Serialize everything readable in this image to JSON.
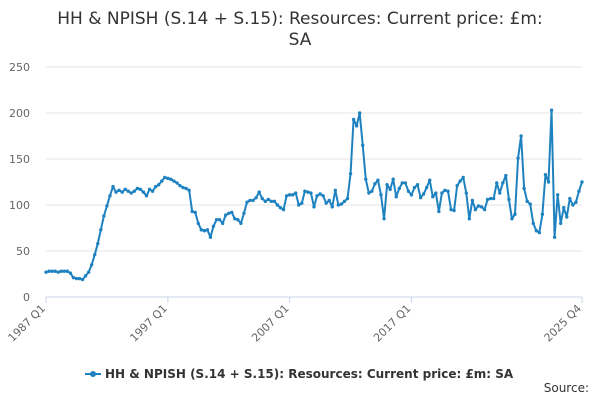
{
  "chart_data": {
    "type": "line",
    "title_lines": [
      "HH & NPISH (S.14 + S.15): Resources: Current price: £m:",
      "SA"
    ],
    "xlabel": "",
    "ylabel": "",
    "ylim": [
      0,
      250
    ],
    "y_ticks": [
      "0",
      "50",
      "100",
      "150",
      "200",
      "250"
    ],
    "x_tick_labels": [
      "1987 Q1",
      "1997 Q1",
      "2007 Q1",
      "2017 Q1",
      "2025 Q4"
    ],
    "grid": "horizontal",
    "legend_position": "bottom",
    "source_label": "Source:",
    "colors": {
      "series": "#1f82c0",
      "grid": "#e6e6e6",
      "axis": "#ccd6eb"
    },
    "series": [
      {
        "name": "HH & NPISH (S.14 + S.15): Resources: Current price: £m: SA",
        "x_start": "1987 Q1",
        "x_end": "2025 Q4",
        "values": [
          27,
          28,
          28,
          28,
          27,
          28,
          28,
          28,
          26,
          21,
          20,
          20,
          19,
          23,
          27,
          35,
          46,
          58,
          73,
          88,
          99,
          110,
          120,
          114,
          116,
          114,
          117,
          115,
          113,
          115,
          118,
          117,
          114,
          110,
          117,
          115,
          120,
          122,
          126,
          130,
          129,
          128,
          126,
          124,
          121,
          119,
          118,
          116,
          93,
          92,
          80,
          73,
          72,
          73,
          65,
          77,
          84,
          84,
          80,
          89,
          91,
          92,
          85,
          84,
          80,
          91,
          103,
          105,
          105,
          108,
          114,
          107,
          104,
          106,
          104,
          104,
          100,
          97,
          95,
          110,
          111,
          111,
          113,
          100,
          102,
          115,
          114,
          113,
          98,
          110,
          112,
          110,
          102,
          105,
          98,
          116,
          100,
          101,
          104,
          107,
          134,
          193,
          186,
          200,
          165,
          128,
          113,
          115,
          123,
          127,
          111,
          85,
          122,
          117,
          128,
          109,
          118,
          124,
          124,
          115,
          111,
          119,
          122,
          108,
          112,
          119,
          127,
          109,
          113,
          93,
          113,
          116,
          115,
          95,
          94,
          121,
          126,
          130,
          113,
          85,
          105,
          95,
          99,
          98,
          95,
          106,
          107,
          107,
          124,
          113,
          124,
          132,
          106,
          85,
          90,
          151,
          175,
          118,
          104,
          101,
          80,
          72,
          70,
          90,
          133,
          125,
          203,
          65,
          111,
          80,
          97,
          87,
          107,
          100,
          103,
          115,
          125
        ]
      }
    ]
  }
}
